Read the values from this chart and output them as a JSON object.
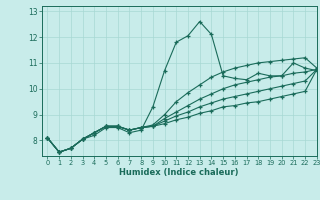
{
  "xlabel": "Humidex (Indice chaleur)",
  "xlim": [
    -0.5,
    23
  ],
  "ylim": [
    7.4,
    13.2
  ],
  "yticks": [
    8,
    9,
    10,
    11,
    12,
    13
  ],
  "xticks": [
    0,
    1,
    2,
    3,
    4,
    5,
    6,
    7,
    8,
    9,
    10,
    11,
    12,
    13,
    14,
    15,
    16,
    17,
    18,
    19,
    20,
    21,
    22,
    23
  ],
  "background_color": "#c8ecea",
  "grid_color": "#a8d8d4",
  "line_color": "#1a6b5a",
  "lines": [
    [
      8.1,
      7.55,
      7.7,
      8.05,
      8.2,
      8.5,
      8.5,
      8.3,
      8.4,
      9.3,
      10.7,
      11.8,
      12.05,
      12.6,
      12.1,
      10.5,
      10.4,
      10.35,
      10.6,
      10.5,
      10.5,
      11.0,
      10.8,
      10.7
    ],
    [
      8.1,
      7.55,
      7.7,
      8.05,
      8.3,
      8.55,
      8.55,
      8.4,
      8.5,
      8.6,
      9.0,
      9.5,
      9.85,
      10.15,
      10.45,
      10.65,
      10.8,
      10.9,
      11.0,
      11.05,
      11.1,
      11.15,
      11.2,
      10.8
    ],
    [
      8.1,
      7.55,
      7.7,
      8.05,
      8.3,
      8.55,
      8.55,
      8.4,
      8.5,
      8.55,
      8.85,
      9.1,
      9.35,
      9.6,
      9.8,
      10.0,
      10.15,
      10.25,
      10.35,
      10.45,
      10.5,
      10.6,
      10.65,
      10.75
    ],
    [
      8.1,
      7.55,
      7.7,
      8.05,
      8.3,
      8.55,
      8.55,
      8.4,
      8.5,
      8.55,
      8.75,
      8.95,
      9.1,
      9.3,
      9.45,
      9.6,
      9.7,
      9.8,
      9.9,
      10.0,
      10.1,
      10.2,
      10.3,
      10.75
    ],
    [
      8.1,
      7.55,
      7.7,
      8.05,
      8.3,
      8.55,
      8.55,
      8.4,
      8.5,
      8.55,
      8.65,
      8.8,
      8.9,
      9.05,
      9.15,
      9.3,
      9.35,
      9.45,
      9.5,
      9.6,
      9.7,
      9.8,
      9.9,
      10.75
    ]
  ]
}
